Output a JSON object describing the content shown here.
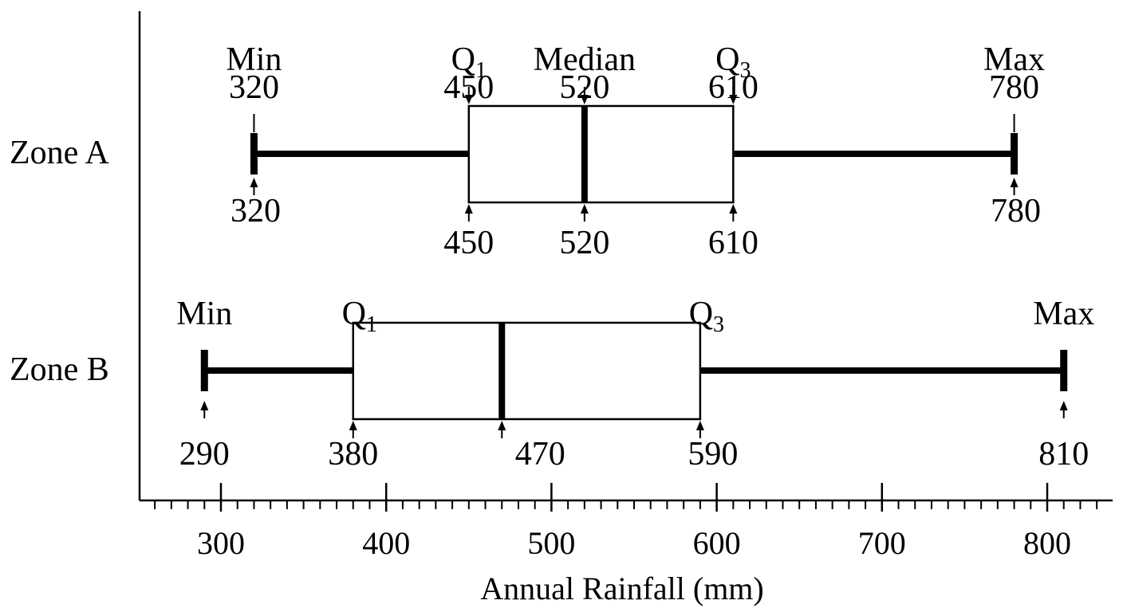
{
  "chart_data": {
    "type": "boxplot",
    "xlabel": "Annual Rainfall (mm)",
    "xlim": [
      250,
      840
    ],
    "xticks": [
      300,
      400,
      500,
      600,
      700,
      800
    ],
    "minor_tick_step": 10,
    "colors": {
      "ink": "#000000",
      "background": "#ffffff"
    },
    "series": [
      {
        "name": "Zone A",
        "min": 320,
        "q1": 450,
        "median": 520,
        "q3": 610,
        "max": 780,
        "top_labels": [
          {
            "stat": "min",
            "name": "Min",
            "value": "320"
          },
          {
            "stat": "q1",
            "name": "Q",
            "sub": "1",
            "value": "450"
          },
          {
            "stat": "median",
            "name": "Median",
            "value": "520"
          },
          {
            "stat": "q3",
            "name": "Q",
            "sub": "3",
            "value": "610"
          },
          {
            "stat": "max",
            "name": "Max",
            "value": "780"
          }
        ],
        "bottom_labels": [
          {
            "stat": "min",
            "value": "320"
          },
          {
            "stat": "q1",
            "value": "450"
          },
          {
            "stat": "median",
            "value": "520"
          },
          {
            "stat": "q3",
            "value": "610"
          },
          {
            "stat": "max",
            "value": "780"
          }
        ]
      },
      {
        "name": "Zone B",
        "min": 290,
        "q1": 380,
        "median": 470,
        "q3": 590,
        "max": 810,
        "top_labels": [
          {
            "stat": "min",
            "name": "Min"
          },
          {
            "stat": "q1",
            "name": "Q",
            "sub": "1"
          },
          {
            "stat": "q3",
            "name": "Q",
            "sub": "3"
          },
          {
            "stat": "max",
            "name": "Max"
          }
        ],
        "bottom_labels": [
          {
            "stat": "min",
            "value": "290"
          },
          {
            "stat": "q1",
            "value": "380"
          },
          {
            "stat": "median",
            "value": "470"
          },
          {
            "stat": "q3",
            "value": "590"
          },
          {
            "stat": "max",
            "value": "810"
          }
        ]
      }
    ]
  }
}
